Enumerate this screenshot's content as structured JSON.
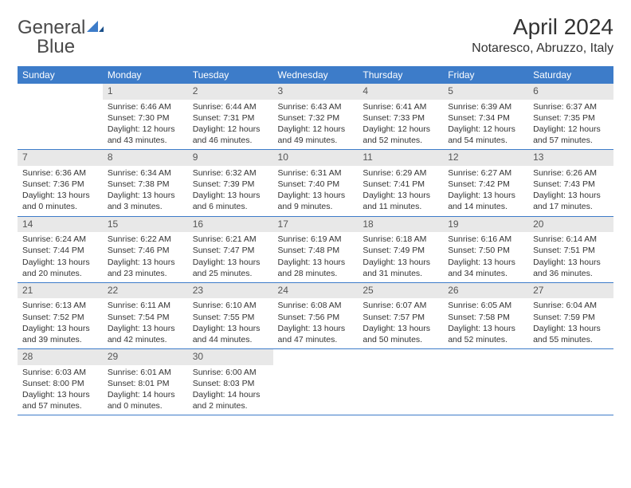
{
  "logo": {
    "word1": "General",
    "word2": "Blue"
  },
  "title": "April 2024",
  "location": "Notaresco, Abruzzo, Italy",
  "colors": {
    "header_bg": "#3d7cc9",
    "header_text": "#ffffff",
    "daynum_bg": "#e8e8e8",
    "border": "#3d7cc9",
    "text": "#333333",
    "logo_gray": "#4a4a4a",
    "logo_blue": "#3d7cc9"
  },
  "typography": {
    "title_fontsize": 28,
    "location_fontsize": 16,
    "dayheader_fontsize": 12,
    "daynum_fontsize": 12,
    "info_fontsize": 10.5
  },
  "layout": {
    "columns": 7,
    "rows": 5,
    "first_weekday_offset": 1
  },
  "day_headers": [
    "Sunday",
    "Monday",
    "Tuesday",
    "Wednesday",
    "Thursday",
    "Friday",
    "Saturday"
  ],
  "days": [
    {
      "n": "1",
      "sunrise": "Sunrise: 6:46 AM",
      "sunset": "Sunset: 7:30 PM",
      "daylight": "Daylight: 12 hours and 43 minutes."
    },
    {
      "n": "2",
      "sunrise": "Sunrise: 6:44 AM",
      "sunset": "Sunset: 7:31 PM",
      "daylight": "Daylight: 12 hours and 46 minutes."
    },
    {
      "n": "3",
      "sunrise": "Sunrise: 6:43 AM",
      "sunset": "Sunset: 7:32 PM",
      "daylight": "Daylight: 12 hours and 49 minutes."
    },
    {
      "n": "4",
      "sunrise": "Sunrise: 6:41 AM",
      "sunset": "Sunset: 7:33 PM",
      "daylight": "Daylight: 12 hours and 52 minutes."
    },
    {
      "n": "5",
      "sunrise": "Sunrise: 6:39 AM",
      "sunset": "Sunset: 7:34 PM",
      "daylight": "Daylight: 12 hours and 54 minutes."
    },
    {
      "n": "6",
      "sunrise": "Sunrise: 6:37 AM",
      "sunset": "Sunset: 7:35 PM",
      "daylight": "Daylight: 12 hours and 57 minutes."
    },
    {
      "n": "7",
      "sunrise": "Sunrise: 6:36 AM",
      "sunset": "Sunset: 7:36 PM",
      "daylight": "Daylight: 13 hours and 0 minutes."
    },
    {
      "n": "8",
      "sunrise": "Sunrise: 6:34 AM",
      "sunset": "Sunset: 7:38 PM",
      "daylight": "Daylight: 13 hours and 3 minutes."
    },
    {
      "n": "9",
      "sunrise": "Sunrise: 6:32 AM",
      "sunset": "Sunset: 7:39 PM",
      "daylight": "Daylight: 13 hours and 6 minutes."
    },
    {
      "n": "10",
      "sunrise": "Sunrise: 6:31 AM",
      "sunset": "Sunset: 7:40 PM",
      "daylight": "Daylight: 13 hours and 9 minutes."
    },
    {
      "n": "11",
      "sunrise": "Sunrise: 6:29 AM",
      "sunset": "Sunset: 7:41 PM",
      "daylight": "Daylight: 13 hours and 11 minutes."
    },
    {
      "n": "12",
      "sunrise": "Sunrise: 6:27 AM",
      "sunset": "Sunset: 7:42 PM",
      "daylight": "Daylight: 13 hours and 14 minutes."
    },
    {
      "n": "13",
      "sunrise": "Sunrise: 6:26 AM",
      "sunset": "Sunset: 7:43 PM",
      "daylight": "Daylight: 13 hours and 17 minutes."
    },
    {
      "n": "14",
      "sunrise": "Sunrise: 6:24 AM",
      "sunset": "Sunset: 7:44 PM",
      "daylight": "Daylight: 13 hours and 20 minutes."
    },
    {
      "n": "15",
      "sunrise": "Sunrise: 6:22 AM",
      "sunset": "Sunset: 7:46 PM",
      "daylight": "Daylight: 13 hours and 23 minutes."
    },
    {
      "n": "16",
      "sunrise": "Sunrise: 6:21 AM",
      "sunset": "Sunset: 7:47 PM",
      "daylight": "Daylight: 13 hours and 25 minutes."
    },
    {
      "n": "17",
      "sunrise": "Sunrise: 6:19 AM",
      "sunset": "Sunset: 7:48 PM",
      "daylight": "Daylight: 13 hours and 28 minutes."
    },
    {
      "n": "18",
      "sunrise": "Sunrise: 6:18 AM",
      "sunset": "Sunset: 7:49 PM",
      "daylight": "Daylight: 13 hours and 31 minutes."
    },
    {
      "n": "19",
      "sunrise": "Sunrise: 6:16 AM",
      "sunset": "Sunset: 7:50 PM",
      "daylight": "Daylight: 13 hours and 34 minutes."
    },
    {
      "n": "20",
      "sunrise": "Sunrise: 6:14 AM",
      "sunset": "Sunset: 7:51 PM",
      "daylight": "Daylight: 13 hours and 36 minutes."
    },
    {
      "n": "21",
      "sunrise": "Sunrise: 6:13 AM",
      "sunset": "Sunset: 7:52 PM",
      "daylight": "Daylight: 13 hours and 39 minutes."
    },
    {
      "n": "22",
      "sunrise": "Sunrise: 6:11 AM",
      "sunset": "Sunset: 7:54 PM",
      "daylight": "Daylight: 13 hours and 42 minutes."
    },
    {
      "n": "23",
      "sunrise": "Sunrise: 6:10 AM",
      "sunset": "Sunset: 7:55 PM",
      "daylight": "Daylight: 13 hours and 44 minutes."
    },
    {
      "n": "24",
      "sunrise": "Sunrise: 6:08 AM",
      "sunset": "Sunset: 7:56 PM",
      "daylight": "Daylight: 13 hours and 47 minutes."
    },
    {
      "n": "25",
      "sunrise": "Sunrise: 6:07 AM",
      "sunset": "Sunset: 7:57 PM",
      "daylight": "Daylight: 13 hours and 50 minutes."
    },
    {
      "n": "26",
      "sunrise": "Sunrise: 6:05 AM",
      "sunset": "Sunset: 7:58 PM",
      "daylight": "Daylight: 13 hours and 52 minutes."
    },
    {
      "n": "27",
      "sunrise": "Sunrise: 6:04 AM",
      "sunset": "Sunset: 7:59 PM",
      "daylight": "Daylight: 13 hours and 55 minutes."
    },
    {
      "n": "28",
      "sunrise": "Sunrise: 6:03 AM",
      "sunset": "Sunset: 8:00 PM",
      "daylight": "Daylight: 13 hours and 57 minutes."
    },
    {
      "n": "29",
      "sunrise": "Sunrise: 6:01 AM",
      "sunset": "Sunset: 8:01 PM",
      "daylight": "Daylight: 14 hours and 0 minutes."
    },
    {
      "n": "30",
      "sunrise": "Sunrise: 6:00 AM",
      "sunset": "Sunset: 8:03 PM",
      "daylight": "Daylight: 14 hours and 2 minutes."
    }
  ]
}
